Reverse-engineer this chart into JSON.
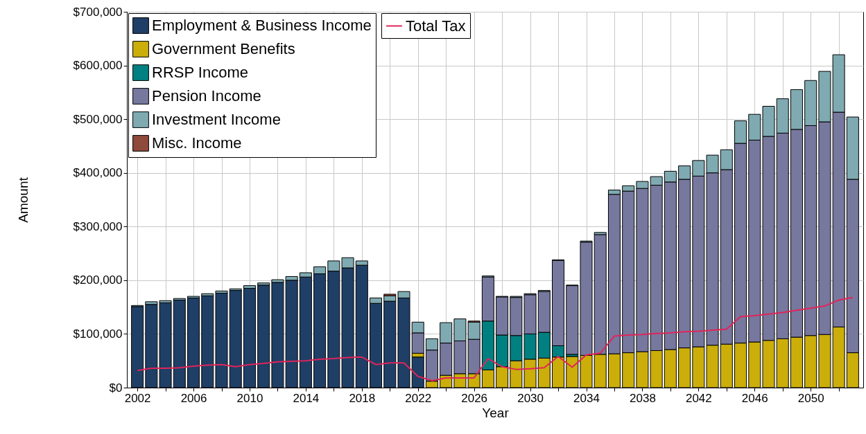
{
  "chart_data": {
    "type": "bar",
    "stacked": true,
    "xlabel": "Year",
    "ylabel": "Amount",
    "legend": "top left",
    "grid": true,
    "x": [
      2002,
      2003,
      2004,
      2005,
      2006,
      2007,
      2008,
      2009,
      2010,
      2011,
      2012,
      2013,
      2014,
      2015,
      2016,
      2017,
      2018,
      2019,
      2020,
      2021,
      2022,
      2023,
      2024,
      2025,
      2026,
      2027,
      2028,
      2029,
      2030,
      2031,
      2032,
      2033,
      2034,
      2035,
      2036,
      2037,
      2038,
      2039,
      2040,
      2041,
      2042,
      2043,
      2044,
      2045,
      2046,
      2047,
      2048,
      2049,
      2050,
      2051,
      2052,
      2053
    ],
    "xlim": [
      2001.5,
      2053.5
    ],
    "xticks": [
      2002,
      {
        "value": 2004,
        "label": null
      },
      2006,
      {
        "value": 2008,
        "label": null
      },
      2010,
      {
        "value": 2012,
        "label": null
      },
      2014,
      {
        "value": 2016,
        "label": null
      },
      2018,
      {
        "value": 2020,
        "label": null
      },
      2022,
      {
        "value": 2024,
        "label": null
      },
      2026,
      {
        "value": 2028,
        "label": null
      },
      2030,
      {
        "value": 2032,
        "label": null
      },
      2034,
      {
        "value": 2036,
        "label": null
      },
      2038,
      {
        "value": 2040,
        "label": null
      },
      2042,
      {
        "value": 2044,
        "label": null
      },
      2046,
      {
        "value": 2048,
        "label": null
      },
      2050,
      {
        "value": 2052,
        "label": null
      }
    ],
    "ylim": [
      0,
      700000
    ],
    "yticks": [
      {
        "value": 0,
        "label": "$0"
      },
      {
        "value": 100000,
        "label": "$100,000"
      },
      {
        "value": 200000,
        "label": "$200,000"
      },
      {
        "value": 300000,
        "label": "$300,000"
      },
      {
        "value": 400000,
        "label": "$400,000"
      },
      {
        "value": 500000,
        "label": "$500,000"
      },
      {
        "value": 600000,
        "label": "$600,000"
      },
      {
        "value": 700000,
        "label": "$700,000"
      }
    ],
    "series": [
      {
        "name": "Employment & Business Income",
        "color": "#1f3f66",
        "values": [
          151000,
          155000,
          158000,
          163000,
          167000,
          171000,
          176000,
          181000,
          185000,
          191000,
          196000,
          200000,
          206000,
          212000,
          217000,
          223000,
          228000,
          157000,
          161000,
          167000,
          57000,
          null,
          null,
          null,
          null,
          null,
          null,
          null,
          null,
          null,
          null,
          null,
          null,
          null,
          null,
          null,
          null,
          null,
          null,
          null,
          null,
          null,
          null,
          null,
          null,
          null,
          null,
          null,
          null,
          null,
          null,
          null
        ]
      },
      {
        "name": "Government Benefits",
        "color": "#cbae0a",
        "values": [
          null,
          null,
          null,
          null,
          null,
          null,
          null,
          null,
          null,
          null,
          null,
          null,
          null,
          null,
          null,
          null,
          null,
          null,
          null,
          null,
          7000,
          12000,
          23000,
          26000,
          26000,
          33000,
          39000,
          50000,
          53000,
          55000,
          57000,
          58000,
          60000,
          62000,
          63000,
          65000,
          67000,
          69000,
          71000,
          74000,
          76000,
          79000,
          81000,
          83000,
          85000,
          88000,
          91000,
          94000,
          97000,
          99000,
          113000,
          65000
        ]
      },
      {
        "name": "RRSP Income",
        "color": "#008080",
        "values": [
          null,
          null,
          null,
          null,
          null,
          null,
          null,
          null,
          null,
          null,
          null,
          null,
          null,
          null,
          null,
          null,
          null,
          null,
          null,
          null,
          null,
          null,
          null,
          null,
          null,
          91000,
          59000,
          47000,
          47000,
          48000,
          21000,
          4000,
          null,
          null,
          null,
          null,
          null,
          null,
          null,
          null,
          null,
          null,
          null,
          null,
          null,
          null,
          null,
          null,
          null,
          null,
          null,
          null
        ]
      },
      {
        "name": "Pension Income",
        "color": "#77789e",
        "values": [
          null,
          null,
          null,
          null,
          null,
          null,
          null,
          null,
          null,
          null,
          null,
          null,
          null,
          null,
          null,
          null,
          null,
          null,
          null,
          null,
          38000,
          58000,
          60000,
          61000,
          64000,
          82000,
          71000,
          71000,
          73000,
          76000,
          159000,
          128000,
          211000,
          223000,
          297000,
          301000,
          304000,
          308000,
          312000,
          314000,
          318000,
          321000,
          325000,
          372000,
          376000,
          380000,
          383000,
          387000,
          391000,
          396000,
          400000,
          323000
        ]
      },
      {
        "name": "Investment Income",
        "color": "#7faab2",
        "values": [
          2000,
          5000,
          4000,
          3000,
          3000,
          4000,
          4000,
          3000,
          5000,
          4000,
          5000,
          7000,
          8000,
          13000,
          19000,
          19000,
          8000,
          10000,
          10000,
          12000,
          20000,
          21000,
          38000,
          41000,
          32000,
          2000,
          1000,
          2000,
          2000,
          2000,
          1000,
          1000,
          2000,
          4000,
          8000,
          10000,
          13000,
          16000,
          20000,
          25000,
          29000,
          33000,
          37000,
          42000,
          48000,
          56000,
          64000,
          74000,
          84000,
          94000,
          107000,
          116000
        ]
      },
      {
        "name": "Misc. Income",
        "color": "#8e4a3a",
        "values": [
          null,
          null,
          null,
          null,
          null,
          null,
          null,
          null,
          null,
          null,
          null,
          null,
          null,
          null,
          null,
          null,
          null,
          null,
          3000,
          null,
          null,
          null,
          null,
          null,
          2000,
          null,
          null,
          null,
          null,
          null,
          null,
          null,
          null,
          null,
          null,
          null,
          null,
          null,
          null,
          null,
          null,
          null,
          null,
          null,
          null,
          null,
          null,
          null,
          null,
          null,
          null,
          null
        ]
      },
      {
        "name": "Total Tax",
        "type": "line",
        "color": "#e0245a",
        "values": [
          32000,
          36000,
          36000,
          37000,
          40000,
          42000,
          43000,
          39000,
          43000,
          45000,
          48000,
          49000,
          50000,
          53000,
          54000,
          56000,
          57000,
          43000,
          46000,
          46000,
          21000,
          13000,
          18000,
          18000,
          18000,
          54000,
          39000,
          34000,
          35000,
          37000,
          58000,
          38000,
          61000,
          64000,
          96000,
          98000,
          99000,
          101000,
          102000,
          104000,
          105000,
          107000,
          109000,
          132000,
          134000,
          137000,
          140000,
          144000,
          148000,
          152000,
          163000,
          168000
        ]
      }
    ]
  }
}
